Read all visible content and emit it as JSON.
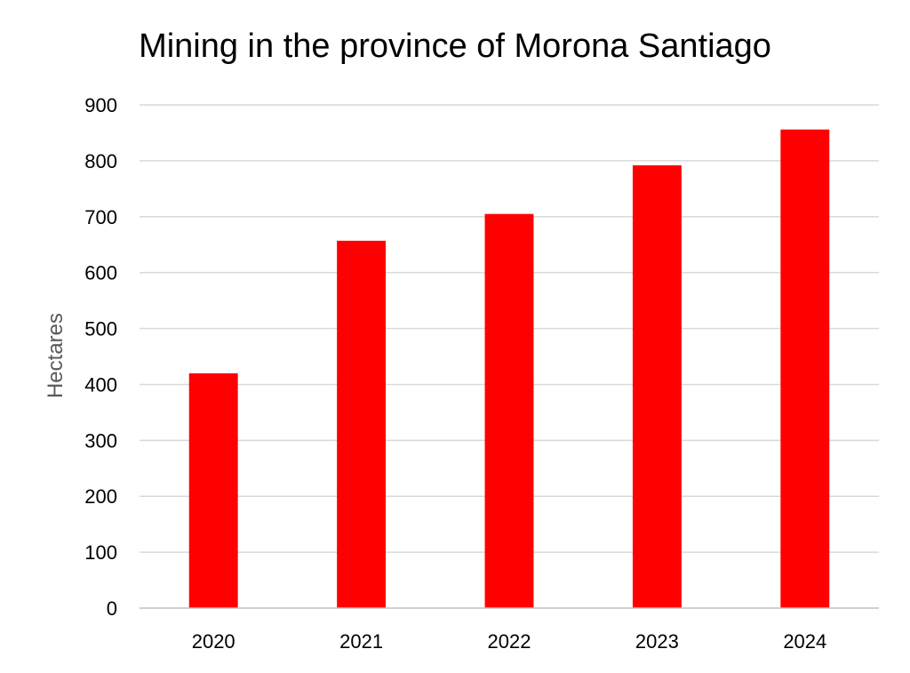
{
  "chart_data": {
    "type": "bar",
    "title": "Mining in the province of Morona Santiago",
    "xlabel": "",
    "ylabel": "Hectares",
    "categories": [
      "2020",
      "2021",
      "2022",
      "2023",
      "2024"
    ],
    "values": [
      420,
      657,
      705,
      792,
      856
    ],
    "ylim": [
      0,
      900
    ],
    "yticks": [
      "0",
      "100",
      "200",
      "300",
      "400",
      "500",
      "600",
      "700",
      "800",
      "900"
    ],
    "grid": true,
    "legend": "none",
    "colors": {
      "bar": "#ff0000",
      "grid": "#d9d9d9",
      "axis": "#bfbfbf"
    }
  }
}
